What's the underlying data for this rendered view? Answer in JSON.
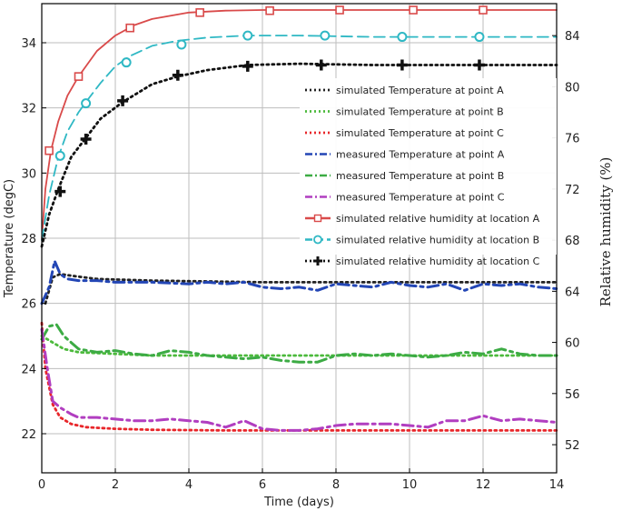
{
  "chart_data": {
    "type": "line",
    "xlabel": "Time (days)",
    "ylabel": "Temperature (degC)",
    "y2label": "Relative humidity (%)",
    "xlim": [
      0,
      14
    ],
    "ylim": [
      20.8,
      35.2
    ],
    "y2lim": [
      49.8,
      86.5
    ],
    "x_ticks": [
      "0",
      "2",
      "4",
      "6",
      "8",
      "10",
      "12",
      "14"
    ],
    "y_ticks": [
      "22",
      "24",
      "26",
      "28",
      "30",
      "32",
      "34"
    ],
    "y2_ticks": [
      "52",
      "56",
      "60",
      "64",
      "68",
      "72",
      "76",
      "80",
      "84"
    ],
    "grid": true,
    "legend_position": "right",
    "series": [
      {
        "name": "simulated Temperature at point A",
        "axis": "left",
        "color": "#222222",
        "dash": "dot",
        "x": [
          0.1,
          0.3,
          0.5,
          0.8,
          1.5,
          3,
          6,
          10,
          14
        ],
        "y": [
          26.0,
          26.8,
          26.9,
          26.85,
          26.75,
          26.7,
          26.65,
          26.65,
          26.65
        ]
      },
      {
        "name": "simulated Temperature at point B",
        "axis": "left",
        "color": "#4cba3c",
        "dash": "dot",
        "x": [
          0,
          0.3,
          0.6,
          1,
          2,
          3,
          5,
          8,
          14
        ],
        "y": [
          25.0,
          24.8,
          24.6,
          24.5,
          24.45,
          24.4,
          24.4,
          24.4,
          24.4
        ]
      },
      {
        "name": "simulated Temperature at point C",
        "axis": "left",
        "color": "#e8262a",
        "dash": "dot",
        "x": [
          0,
          0.1,
          0.3,
          0.5,
          0.8,
          1.2,
          2,
          3,
          5,
          8,
          14
        ],
        "y": [
          25.4,
          24.0,
          22.9,
          22.5,
          22.3,
          22.2,
          22.15,
          22.12,
          22.1,
          22.1,
          22.1
        ]
      },
      {
        "name": "measured Temperature at point A",
        "axis": "left",
        "color": "#2346b5",
        "dash": "dashdot",
        "x": [
          0,
          0.2,
          0.35,
          0.5,
          0.7,
          1,
          1.5,
          2,
          3,
          4,
          4.5,
          5,
          5.5,
          6,
          6.5,
          7,
          7.5,
          8,
          8.5,
          9,
          9.5,
          10,
          10.5,
          11,
          11.5,
          12,
          12.5,
          13,
          13.5,
          14
        ],
        "y": [
          26.0,
          26.5,
          27.3,
          26.9,
          26.75,
          26.7,
          26.7,
          26.65,
          26.65,
          26.6,
          26.65,
          26.6,
          26.65,
          26.5,
          26.45,
          26.5,
          26.4,
          26.6,
          26.55,
          26.5,
          26.65,
          26.55,
          26.5,
          26.6,
          26.4,
          26.6,
          26.55,
          26.6,
          26.5,
          26.45
        ]
      },
      {
        "name": "measured Temperature at point B",
        "axis": "left",
        "color": "#3cab44",
        "dash": "dashdot",
        "x": [
          0,
          0.2,
          0.4,
          0.6,
          0.8,
          1,
          1.5,
          2,
          2.5,
          3,
          3.5,
          4,
          4.5,
          5,
          5.5,
          6,
          6.5,
          7,
          7.5,
          8,
          8.5,
          9,
          9.5,
          10,
          10.5,
          11,
          11.5,
          12,
          12.5,
          13,
          13.5,
          14
        ],
        "y": [
          24.9,
          25.3,
          25.35,
          25.0,
          24.8,
          24.6,
          24.5,
          24.55,
          24.45,
          24.4,
          24.55,
          24.5,
          24.4,
          24.35,
          24.3,
          24.35,
          24.25,
          24.2,
          24.2,
          24.4,
          24.45,
          24.4,
          24.45,
          24.4,
          24.35,
          24.4,
          24.5,
          24.45,
          24.6,
          24.45,
          24.4,
          24.4
        ]
      },
      {
        "name": "measured Temperature at point C",
        "axis": "left",
        "color": "#b13ec0",
        "dash": "dashdot",
        "x": [
          0,
          0.15,
          0.3,
          0.5,
          0.8,
          1,
          1.5,
          2,
          2.5,
          3,
          3.5,
          4,
          4.5,
          5,
          5.5,
          6,
          6.5,
          7,
          7.5,
          8,
          8.5,
          9,
          9.5,
          10,
          10.5,
          11,
          11.5,
          12,
          12.5,
          13,
          13.5,
          14
        ],
        "y": [
          25.2,
          24.0,
          23.0,
          22.8,
          22.6,
          22.5,
          22.5,
          22.45,
          22.4,
          22.4,
          22.45,
          22.4,
          22.35,
          22.2,
          22.4,
          22.15,
          22.1,
          22.1,
          22.15,
          22.25,
          22.3,
          22.3,
          22.3,
          22.25,
          22.2,
          22.4,
          22.4,
          22.55,
          22.4,
          22.45,
          22.4,
          22.35
        ]
      },
      {
        "name": "simulated relative humidity at location A",
        "axis": "right",
        "color": "#d94a4a",
        "dash": "solid",
        "marker": "square",
        "x": [
          0,
          0.1,
          0.25,
          0.45,
          0.7,
          1,
          1.5,
          2,
          2.5,
          3,
          4,
          5,
          6,
          7,
          8,
          10,
          12,
          14
        ],
        "y": [
          68.0,
          72.0,
          75.0,
          77.3,
          79.3,
          80.8,
          82.8,
          84.0,
          84.8,
          85.3,
          85.8,
          85.95,
          86.0,
          86.0,
          86.0,
          86.0,
          86.0,
          86.0
        ],
        "marker_x": [
          0.2,
          1,
          2.4,
          4.3,
          6.2,
          8.1,
          10.1,
          12
        ],
        "marker_y": [
          75.0,
          80.8,
          84.6,
          85.8,
          85.95,
          86.0,
          86.0,
          86.0
        ]
      },
      {
        "name": "simulated relative humidity at location B",
        "axis": "right",
        "color": "#2fb8c4",
        "dash": "dash",
        "marker": "circle",
        "x": [
          0,
          0.2,
          0.45,
          0.7,
          1,
          1.2,
          1.6,
          2,
          2.4,
          3,
          3.7,
          4.5,
          5.6,
          7,
          9,
          12,
          14
        ],
        "y": [
          68.0,
          71.5,
          74.5,
          76.5,
          78.0,
          78.8,
          80.3,
          81.6,
          82.4,
          83.2,
          83.6,
          83.85,
          84.0,
          84.0,
          83.9,
          83.9,
          83.9
        ],
        "marker_x": [
          0.5,
          1.2,
          2.3,
          3.8,
          5.6,
          7.7,
          9.8,
          11.9
        ],
        "marker_y": [
          74.6,
          78.7,
          81.9,
          83.3,
          84.0,
          84.0,
          83.9,
          83.9
        ]
      },
      {
        "name": "simulated relative humidity at location C",
        "axis": "right",
        "color": "#111111",
        "dash": "dot",
        "marker": "plus",
        "x": [
          0,
          0.2,
          0.45,
          0.8,
          1.2,
          1.6,
          2.2,
          3,
          3.7,
          4.5,
          5.6,
          7,
          9,
          12,
          14
        ],
        "y": [
          67.5,
          70.0,
          72.0,
          74.5,
          76.0,
          77.5,
          78.8,
          80.2,
          80.8,
          81.3,
          81.7,
          81.8,
          81.7,
          81.7,
          81.7
        ],
        "marker_x": [
          0.5,
          1.2,
          2.2,
          3.7,
          5.6,
          7.6,
          9.8,
          11.9
        ],
        "marker_y": [
          71.8,
          75.9,
          78.9,
          80.9,
          81.6,
          81.7,
          81.7,
          81.7
        ]
      }
    ]
  }
}
